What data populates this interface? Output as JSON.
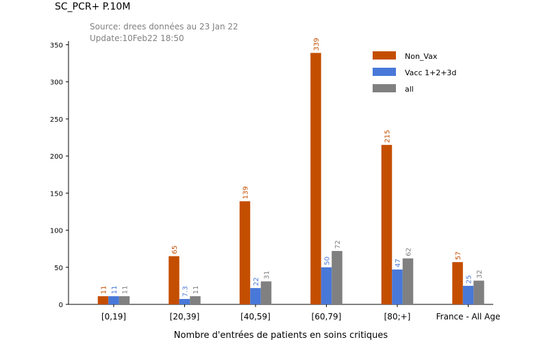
{
  "chart_data": {
    "type": "bar",
    "title": "SC_PCR+ P.10M",
    "subtitle_lines": [
      "Source: drees données au 23 Jan 22",
      "Update:10Feb22 18:50"
    ],
    "xlabel": "Nombre d'entrées de patients en soins critiques",
    "ylabel": "",
    "categories": [
      "[0,19]",
      "[20,39]",
      "[40,59]",
      "[60,79]",
      "[80;+]",
      "France - All Age"
    ],
    "ylim": [
      0,
      355
    ],
    "yticks": [
      0,
      50,
      100,
      150,
      200,
      250,
      300,
      350
    ],
    "legend_position": "top-right",
    "series": [
      {
        "name": "Non_Vax",
        "color": "#c44e00",
        "values": [
          11,
          65,
          139,
          339,
          215,
          57
        ],
        "labels": [
          "11",
          "65",
          "139",
          "339",
          "215",
          "57"
        ]
      },
      {
        "name": "Vacc 1+2+3d",
        "color": "#4878d8",
        "values": [
          11,
          7.3,
          22,
          50,
          47,
          25
        ],
        "labels": [
          "11",
          "7.3",
          "22",
          "50",
          "47",
          "25"
        ]
      },
      {
        "name": "all",
        "color": "#808080",
        "values": [
          11,
          11,
          31,
          72,
          62,
          32
        ],
        "labels": [
          "11",
          "11",
          "31",
          "72",
          "62",
          "32"
        ]
      }
    ]
  }
}
